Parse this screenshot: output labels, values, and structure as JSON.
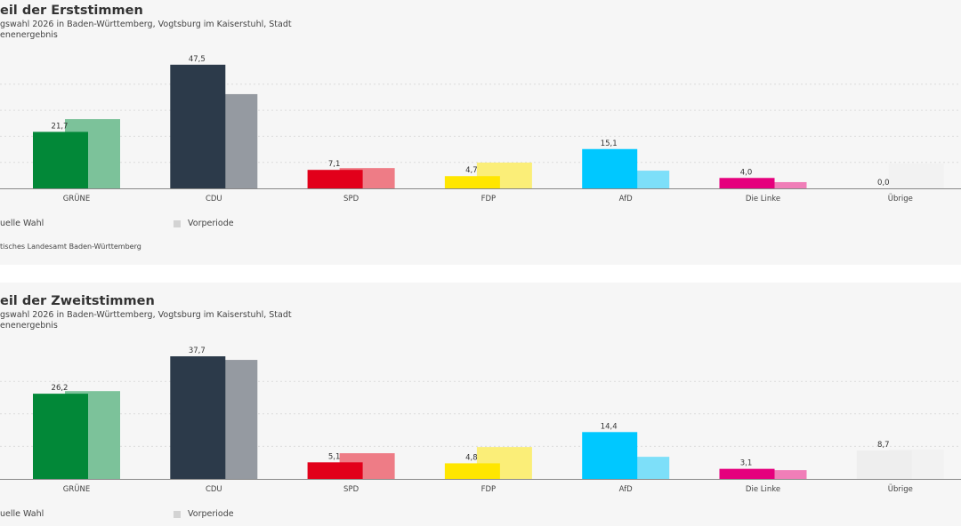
{
  "chart_data": [
    {
      "type": "bar",
      "title": "eil der Erststimmen",
      "subtitle": "gswahl 2026 in Baden-Württemberg, Vogtsburg im Kaiserstuhl, Stadt",
      "subtitle2": "enenergebnis",
      "categories": [
        "GRÜNE",
        "CDU",
        "SPD",
        "FDP",
        "AfD",
        "Die Linke",
        "Übrige"
      ],
      "series": [
        {
          "name": "uelle Wahl",
          "values": [
            21.7,
            47.5,
            7.1,
            4.7,
            15.1,
            4.0,
            0.0
          ],
          "labels": [
            "21,7",
            "47,5",
            "7,1",
            "4,7",
            "15,1",
            "4,0",
            "0,0"
          ]
        },
        {
          "name": "Vorperiode",
          "values": [
            26.6,
            36.2,
            7.8,
            9.9,
            6.8,
            2.4,
            9.6
          ]
        }
      ],
      "ylim": [
        0,
        50
      ],
      "grid": [
        10,
        20,
        30,
        40
      ],
      "source": "tisches Landesamt Baden-Württemberg"
    },
    {
      "type": "bar",
      "title": "eil der Zweitstimmen",
      "subtitle": "gswahl 2026 in Baden-Württemberg, Vogtsburg im Kaiserstuhl, Stadt",
      "subtitle2": "enenergebnis",
      "categories": [
        "GRÜNE",
        "CDU",
        "SPD",
        "FDP",
        "AfD",
        "Die Linke",
        "Übrige"
      ],
      "series": [
        {
          "name": "uelle Wahl",
          "values": [
            26.2,
            37.7,
            5.1,
            4.8,
            14.4,
            3.1,
            8.7
          ],
          "labels": [
            "26,2",
            "37,7",
            "5,1",
            "4,8",
            "14,4",
            "3,1",
            "8,7"
          ]
        },
        {
          "name": "Vorperiode",
          "values": [
            27.0,
            36.6,
            7.9,
            9.8,
            6.8,
            2.7,
            9.0
          ]
        }
      ],
      "ylim": [
        0,
        40
      ],
      "grid": [
        10,
        20,
        30
      ],
      "source": ""
    }
  ],
  "colors": {
    "current": [
      "#028838",
      "#2c3a4a",
      "#e2001a",
      "#ffe600",
      "#00c8ff",
      "#e5007d",
      "#eeeeee"
    ],
    "previous": [
      "#7cc29a",
      "#959aa1",
      "#ee7c86",
      "#fbee78",
      "#7ddff9",
      "#f07eb8",
      "#f2f2f2"
    ]
  }
}
